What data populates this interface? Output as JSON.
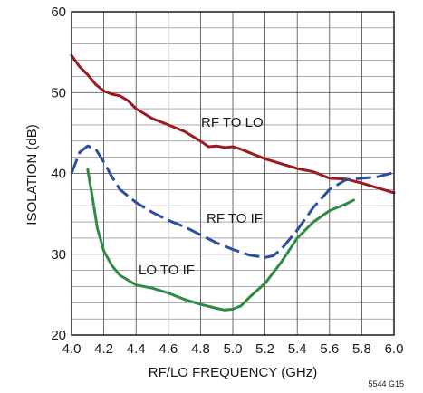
{
  "chart_data": {
    "type": "line",
    "xlabel": "RF/LO FREQUENCY (GHz)",
    "ylabel": "ISOLATION (dB)",
    "xlim": [
      4.0,
      6.0
    ],
    "ylim": [
      20,
      60
    ],
    "x_ticks": [
      "4.0",
      "4.2",
      "4.4",
      "4.6",
      "4.8",
      "5.0",
      "5.2",
      "5.4",
      "5.6",
      "5.8",
      "6.0"
    ],
    "y_ticks": [
      "20",
      "30",
      "40",
      "50",
      "60"
    ],
    "grid": true,
    "footnote": "5544 G15",
    "series": [
      {
        "name": "RF TO LO",
        "color": "#9b1c20",
        "style": "solid",
        "points": [
          [
            4.0,
            54.6
          ],
          [
            4.05,
            53.2
          ],
          [
            4.1,
            52.2
          ],
          [
            4.15,
            51.0
          ],
          [
            4.2,
            50.2
          ],
          [
            4.25,
            49.8
          ],
          [
            4.3,
            49.6
          ],
          [
            4.35,
            49.0
          ],
          [
            4.4,
            48.0
          ],
          [
            4.5,
            46.8
          ],
          [
            4.6,
            46.0
          ],
          [
            4.7,
            45.2
          ],
          [
            4.8,
            44.0
          ],
          [
            4.85,
            43.3
          ],
          [
            4.9,
            43.4
          ],
          [
            4.95,
            43.2
          ],
          [
            5.0,
            43.3
          ],
          [
            5.05,
            43.0
          ],
          [
            5.1,
            42.6
          ],
          [
            5.15,
            42.2
          ],
          [
            5.2,
            41.8
          ],
          [
            5.3,
            41.2
          ],
          [
            5.4,
            40.6
          ],
          [
            5.5,
            40.2
          ],
          [
            5.6,
            39.4
          ],
          [
            5.7,
            39.3
          ],
          [
            5.8,
            38.8
          ],
          [
            5.9,
            38.2
          ],
          [
            6.0,
            37.6
          ]
        ]
      },
      {
        "name": "RF TO IF",
        "color": "#2c4e9e",
        "style": "dashed",
        "points": [
          [
            4.0,
            40.0
          ],
          [
            4.05,
            42.6
          ],
          [
            4.1,
            43.4
          ],
          [
            4.15,
            43.0
          ],
          [
            4.2,
            41.4
          ],
          [
            4.25,
            39.6
          ],
          [
            4.3,
            38.0
          ],
          [
            4.4,
            36.4
          ],
          [
            4.5,
            35.2
          ],
          [
            4.6,
            34.2
          ],
          [
            4.7,
            33.4
          ],
          [
            4.8,
            32.4
          ],
          [
            4.9,
            31.4
          ],
          [
            5.0,
            30.6
          ],
          [
            5.1,
            29.9
          ],
          [
            5.2,
            29.6
          ],
          [
            5.25,
            29.8
          ],
          [
            5.3,
            30.6
          ],
          [
            5.4,
            33.0
          ],
          [
            5.5,
            35.8
          ],
          [
            5.6,
            38.0
          ],
          [
            5.7,
            39.2
          ],
          [
            5.8,
            39.4
          ],
          [
            5.9,
            39.6
          ],
          [
            6.0,
            40.1
          ]
        ]
      },
      {
        "name": "LO TO IF",
        "color": "#2e8b46",
        "style": "solid",
        "points": [
          [
            4.1,
            40.5
          ],
          [
            4.13,
            37.0
          ],
          [
            4.16,
            33.2
          ],
          [
            4.2,
            30.4
          ],
          [
            4.25,
            28.6
          ],
          [
            4.3,
            27.4
          ],
          [
            4.4,
            26.2
          ],
          [
            4.5,
            25.8
          ],
          [
            4.6,
            25.2
          ],
          [
            4.7,
            24.4
          ],
          [
            4.8,
            23.8
          ],
          [
            4.9,
            23.3
          ],
          [
            4.95,
            23.1
          ],
          [
            5.0,
            23.2
          ],
          [
            5.05,
            23.6
          ],
          [
            5.1,
            24.6
          ],
          [
            5.2,
            26.4
          ],
          [
            5.3,
            29.0
          ],
          [
            5.4,
            32.0
          ],
          [
            5.5,
            34.0
          ],
          [
            5.6,
            35.4
          ],
          [
            5.7,
            36.2
          ],
          [
            5.75,
            36.7
          ]
        ]
      }
    ]
  }
}
